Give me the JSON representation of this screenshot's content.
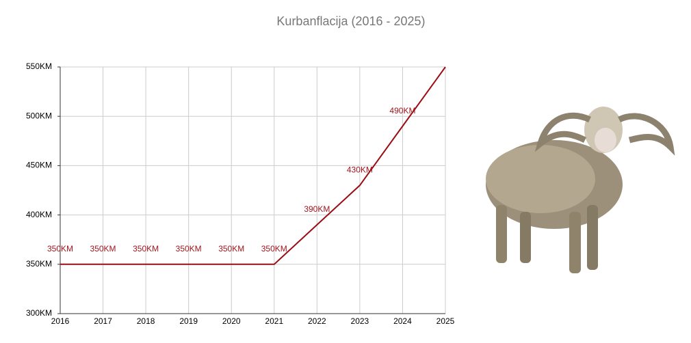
{
  "chart_data": {
    "type": "line",
    "title": "Kurbanflacija (2016 - 2025)",
    "x": [
      2016,
      2017,
      2018,
      2019,
      2020,
      2021,
      2022,
      2023,
      2024,
      2025
    ],
    "values": [
      350,
      350,
      350,
      350,
      350,
      350,
      390,
      430,
      490,
      550
    ],
    "value_labels": [
      "350KM",
      "350KM",
      "350KM",
      "350KM",
      "350KM",
      "350KM",
      "390KM",
      "430KM",
      "490KM",
      null
    ],
    "color": "#9b0d15",
    "xlim": [
      2016,
      2025
    ],
    "xticks": [
      2016,
      2017,
      2018,
      2019,
      2020,
      2021,
      2022,
      2023,
      2024,
      2025
    ],
    "ylim": [
      300,
      550
    ],
    "yticks": [
      {
        "value": 300,
        "label": "300KM"
      },
      {
        "value": 350,
        "label": "350KM"
      },
      {
        "value": 400,
        "label": "400KM"
      },
      {
        "value": 450,
        "label": "450KM"
      },
      {
        "value": 500,
        "label": "500KM"
      },
      {
        "value": 550,
        "label": "550KM"
      }
    ],
    "grid": true
  }
}
